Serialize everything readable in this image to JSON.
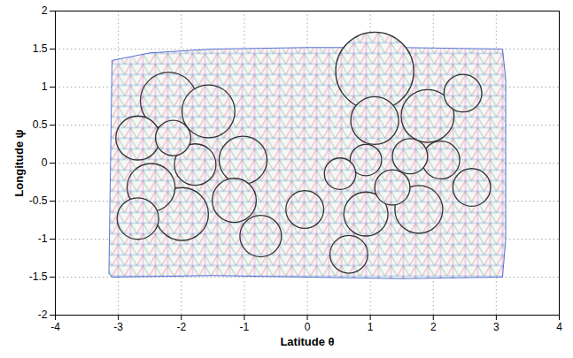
{
  "chart_data": {
    "type": "mesh",
    "xlabel": "Latitude θ",
    "ylabel": "Longitude ψ",
    "xlim": [
      -4,
      4
    ],
    "ylim": [
      -2,
      2
    ],
    "xticks": [
      -4,
      -3,
      -2,
      -1,
      0,
      1,
      2,
      3,
      4
    ],
    "yticks": [
      -2,
      -1.5,
      -1,
      -0.5,
      0,
      0.5,
      1,
      1.5,
      2
    ],
    "grid": true,
    "color": "#333333",
    "colors": [
      "#e03030",
      "#20a040",
      "#3050d0",
      "#20b0c0",
      "#c040c0"
    ],
    "region": {
      "x": [
        -3.15,
        -3.1,
        -2.5,
        -1.5,
        0,
        1.5,
        3.1,
        3.15,
        3.15,
        3.1,
        1.5,
        0,
        -1.5,
        -3.1,
        -3.15
      ],
      "y": [
        -1.45,
        1.35,
        1.45,
        1.5,
        1.52,
        1.52,
        1.5,
        1.1,
        -1.0,
        -1.5,
        -1.52,
        -1.5,
        -1.48,
        -1.5,
        -1.45
      ]
    },
    "circles": {
      "x": [
        -2.69,
        -2.2,
        -1.57,
        -2.13,
        -1.78,
        -1.02,
        -2.48,
        -1.99,
        -1.16,
        -0.74,
        -0.04,
        -2.69,
        1.07,
        1.91,
        2.47,
        1.63,
        2.12,
        0.93,
        0.52,
        1.35,
        0.93,
        1.77,
        2.61,
        0.66,
        1.07
      ],
      "y": [
        0.33,
        0.82,
        0.68,
        0.33,
        -0.02,
        0.04,
        -0.32,
        -0.67,
        -0.49,
        -0.96,
        -0.61,
        -0.73,
        0.56,
        0.62,
        0.92,
        0.09,
        0.04,
        0.04,
        -0.14,
        -0.32,
        -0.67,
        -0.61,
        -0.32,
        -1.2,
        1.21
      ],
      "r": [
        0.35,
        0.45,
        0.42,
        0.28,
        0.33,
        0.38,
        0.38,
        0.42,
        0.35,
        0.33,
        0.3,
        0.33,
        0.38,
        0.42,
        0.3,
        0.28,
        0.3,
        0.25,
        0.25,
        0.28,
        0.35,
        0.38,
        0.3,
        0.3,
        0.62
      ]
    }
  }
}
